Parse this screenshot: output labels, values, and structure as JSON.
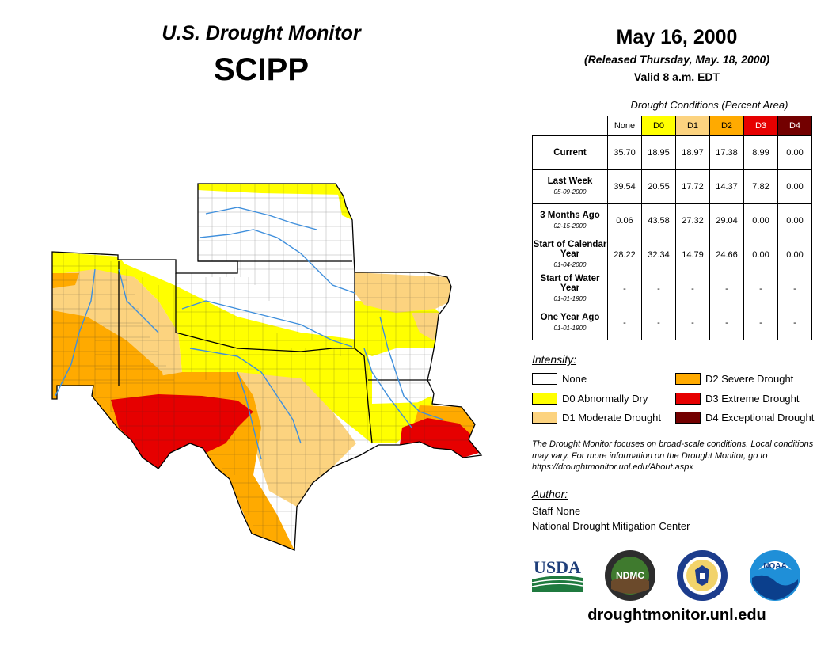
{
  "header": {
    "title": "U.S. Drought Monitor",
    "region": "SCIPP",
    "date": "May 16, 2000",
    "released": "(Released Thursday, May. 18, 2000)",
    "valid": "Valid 8 a.m. EDT"
  },
  "table": {
    "title": "Drought Conditions (Percent Area)",
    "columns": [
      {
        "label": "None",
        "color": "#ffffff",
        "text_color": "#000000"
      },
      {
        "label": "D0",
        "color": "#ffff00",
        "text_color": "#000000"
      },
      {
        "label": "D1",
        "color": "#fcd37f",
        "text_color": "#000000"
      },
      {
        "label": "D2",
        "color": "#ffaa00",
        "text_color": "#000000"
      },
      {
        "label": "D3",
        "color": "#e60000",
        "text_color": "#ffffff"
      },
      {
        "label": "D4",
        "color": "#730000",
        "text_color": "#ffffff"
      }
    ],
    "rows": [
      {
        "label": "Current",
        "sub": "",
        "values": [
          "35.70",
          "18.95",
          "18.97",
          "17.38",
          "8.99",
          "0.00"
        ]
      },
      {
        "label": "Last Week",
        "sub": "05-09-2000",
        "values": [
          "39.54",
          "20.55",
          "17.72",
          "14.37",
          "7.82",
          "0.00"
        ]
      },
      {
        "label": "3 Months Ago",
        "sub": "02-15-2000",
        "values": [
          "0.06",
          "43.58",
          "27.32",
          "29.04",
          "0.00",
          "0.00"
        ]
      },
      {
        "label": "Start of Calendar Year",
        "sub": "01-04-2000",
        "values": [
          "28.22",
          "32.34",
          "14.79",
          "24.66",
          "0.00",
          "0.00"
        ]
      },
      {
        "label": "Start of Water Year",
        "sub": "01-01-1900",
        "values": [
          "-",
          "-",
          "-",
          "-",
          "-",
          "-"
        ]
      },
      {
        "label": "One Year Ago",
        "sub": "01-01-1900",
        "values": [
          "-",
          "-",
          "-",
          "-",
          "-",
          "-"
        ]
      }
    ]
  },
  "legend": {
    "title": "Intensity:",
    "items": [
      {
        "label": "None",
        "color": "#ffffff"
      },
      {
        "label": "D0 Abnormally Dry",
        "color": "#ffff00"
      },
      {
        "label": "D1 Moderate Drought",
        "color": "#fcd37f"
      },
      {
        "label": "D2 Severe Drought",
        "color": "#ffaa00"
      },
      {
        "label": "D3 Extreme Drought",
        "color": "#e60000"
      },
      {
        "label": "D4 Exceptional Drought",
        "color": "#730000"
      }
    ]
  },
  "note": "The Drought Monitor focuses on broad-scale conditions. Local conditions may vary. For more information on the Drought Monitor, go to https://droughtmonitor.unl.edu/About.aspx",
  "author": {
    "title": "Author:",
    "name": "Staff None",
    "org": "National Drought Mitigation Center"
  },
  "logos": {
    "usda": "USDA",
    "ndmc": "NDMC",
    "noaa": "NOAA"
  },
  "footer_url": "droughtmonitor.unl.edu"
}
